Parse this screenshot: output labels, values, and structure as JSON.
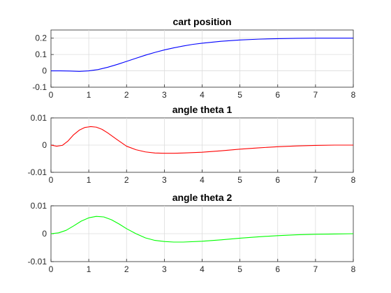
{
  "chart_data": [
    {
      "type": "line",
      "title": "cart position",
      "xlim": [
        0,
        8
      ],
      "ylim": [
        -0.1,
        0.25
      ],
      "xticks": [
        0,
        1,
        2,
        3,
        4,
        5,
        6,
        7,
        8
      ],
      "yticks": [
        -0.1,
        0,
        0.1,
        0.2
      ],
      "ytick_labels": [
        "-0.1",
        "0",
        "0.1",
        "0.2"
      ],
      "grid": true,
      "series": [
        {
          "color": "#0000ff",
          "x": [
            0,
            0.25,
            0.5,
            0.75,
            1.0,
            1.25,
            1.5,
            1.75,
            2.0,
            2.25,
            2.5,
            2.75,
            3.0,
            3.25,
            3.5,
            3.75,
            4.0,
            4.5,
            5.0,
            5.5,
            6.0,
            6.5,
            7.0,
            7.5,
            8.0
          ],
          "y": [
            0,
            0.0,
            -0.001,
            -0.003,
            0.0,
            0.008,
            0.022,
            0.039,
            0.058,
            0.077,
            0.096,
            0.113,
            0.128,
            0.141,
            0.152,
            0.162,
            0.169,
            0.181,
            0.189,
            0.194,
            0.197,
            0.199,
            0.2,
            0.2,
            0.2
          ]
        }
      ]
    },
    {
      "type": "line",
      "title": "angle theta 1",
      "xlim": [
        0,
        8
      ],
      "ylim": [
        -0.01,
        0.01
      ],
      "xticks": [
        0,
        1,
        2,
        3,
        4,
        5,
        6,
        7,
        8
      ],
      "yticks": [
        -0.01,
        0,
        0.01
      ],
      "ytick_labels": [
        "-0.01",
        "0",
        "0.01"
      ],
      "grid": true,
      "series": [
        {
          "color": "#ff0000",
          "x": [
            0,
            0.15,
            0.3,
            0.45,
            0.6,
            0.75,
            0.9,
            1.05,
            1.2,
            1.35,
            1.5,
            1.75,
            2.0,
            2.25,
            2.5,
            2.75,
            3.0,
            3.25,
            3.5,
            4.0,
            4.5,
            5.0,
            5.5,
            6.0,
            6.5,
            7.0,
            7.5,
            8.0
          ],
          "y": [
            0,
            -0.0004,
            -0.0001,
            0.0015,
            0.0038,
            0.0055,
            0.0065,
            0.0068,
            0.0066,
            0.0058,
            0.0045,
            0.002,
            -0.0004,
            -0.0017,
            -0.0025,
            -0.0029,
            -0.003,
            -0.003,
            -0.0029,
            -0.0026,
            -0.0021,
            -0.0015,
            -0.001,
            -0.0006,
            -0.0003,
            -0.0001,
            0.0,
            0.0
          ]
        }
      ]
    },
    {
      "type": "line",
      "title": "angle theta 2",
      "xlim": [
        0,
        8
      ],
      "ylim": [
        -0.01,
        0.01
      ],
      "xticks": [
        0,
        1,
        2,
        3,
        4,
        5,
        6,
        7,
        8
      ],
      "yticks": [
        -0.01,
        0,
        0.01
      ],
      "ytick_labels": [
        "-0.01",
        "0",
        "0.01"
      ],
      "grid": true,
      "series": [
        {
          "color": "#00ff00",
          "x": [
            0,
            0.2,
            0.4,
            0.6,
            0.8,
            1.0,
            1.2,
            1.4,
            1.6,
            1.8,
            2.0,
            2.25,
            2.5,
            2.75,
            3.0,
            3.25,
            3.5,
            4.0,
            4.5,
            5.0,
            5.5,
            6.0,
            6.5,
            7.0,
            7.5,
            8.0
          ],
          "y": [
            0,
            0.0003,
            0.0012,
            0.0028,
            0.0045,
            0.0057,
            0.0062,
            0.006,
            0.005,
            0.0035,
            0.0018,
            0.0,
            -0.0015,
            -0.0024,
            -0.0028,
            -0.003,
            -0.003,
            -0.0027,
            -0.0022,
            -0.0016,
            -0.0011,
            -0.0007,
            -0.0004,
            -0.0002,
            -0.0001,
            0.0
          ]
        }
      ]
    }
  ]
}
